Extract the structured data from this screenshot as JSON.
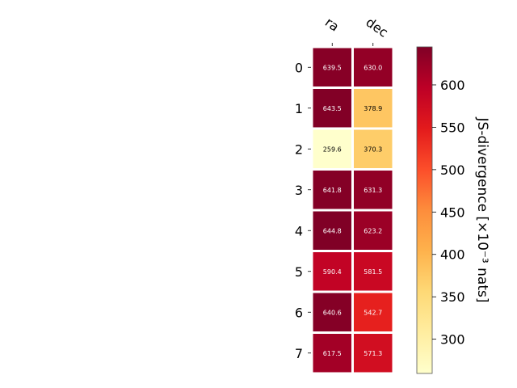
{
  "chart_data": {
    "type": "heatmap",
    "columns": [
      "ra",
      "dec"
    ],
    "rows": [
      "0",
      "1",
      "2",
      "3",
      "4",
      "5",
      "6",
      "7"
    ],
    "values": [
      [
        639.5,
        630.0
      ],
      [
        643.5,
        378.9
      ],
      [
        259.6,
        370.3
      ],
      [
        641.8,
        631.3
      ],
      [
        644.8,
        623.2
      ],
      [
        590.4,
        581.5
      ],
      [
        640.6,
        542.7
      ],
      [
        617.5,
        571.3
      ]
    ],
    "value_labels": [
      [
        "639.5",
        "630.0"
      ],
      [
        "643.5",
        "378.9"
      ],
      [
        "259.6",
        "370.3"
      ],
      [
        "641.8",
        "631.3"
      ],
      [
        "644.8",
        "623.2"
      ],
      [
        "590.4",
        "581.5"
      ],
      [
        "640.6",
        "542.7"
      ],
      [
        "617.5",
        "571.3"
      ]
    ],
    "colormap": "YlOrRd",
    "colorbar": {
      "label": "JS-divergence [×10⁻³ nats]",
      "min": 259.6,
      "max": 644.8,
      "ticks": [
        300,
        350,
        400,
        450,
        500,
        550,
        600
      ],
      "tick_labels": [
        "300",
        "350",
        "400",
        "450",
        "500",
        "550",
        "600"
      ],
      "position": "right"
    },
    "grid": false
  }
}
